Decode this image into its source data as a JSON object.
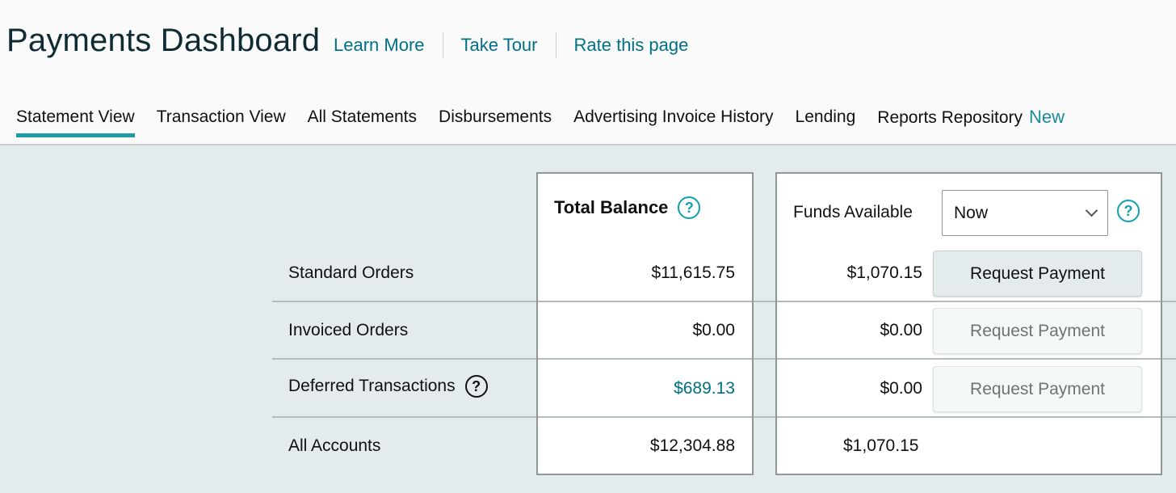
{
  "header": {
    "title": "Payments Dashboard",
    "links": [
      "Learn More",
      "Take Tour",
      "Rate this page"
    ]
  },
  "tabs": [
    {
      "label": "Statement View",
      "active": true
    },
    {
      "label": "Transaction View"
    },
    {
      "label": "All Statements"
    },
    {
      "label": "Disbursements"
    },
    {
      "label": "Advertising Invoice History"
    },
    {
      "label": "Lending"
    },
    {
      "label": "Reports Repository",
      "badge": "New"
    }
  ],
  "table": {
    "total_balance_header": "Total Balance",
    "funds_available_label": "Funds Available",
    "funds_select_value": "Now",
    "request_payment_label": "Request Payment",
    "rows": [
      {
        "label": "Standard Orders",
        "total": "$11,615.75",
        "available": "$1,070.15"
      },
      {
        "label": "Invoiced Orders",
        "total": "$0.00",
        "available": "$0.00"
      },
      {
        "label": "Deferred Transactions",
        "total": "$689.13",
        "available": "$0.00"
      },
      {
        "label": "All Accounts",
        "total": "$12,304.88",
        "available": "$1,070.15"
      }
    ]
  },
  "icons": {
    "help": "question-circle-icon",
    "dropdown": "chevron-down-icon"
  },
  "colors": {
    "accent": "#007185",
    "tab_underline": "#1d9ca7",
    "badge": "#1b8a9a",
    "page_bg": "#e3ebec"
  }
}
